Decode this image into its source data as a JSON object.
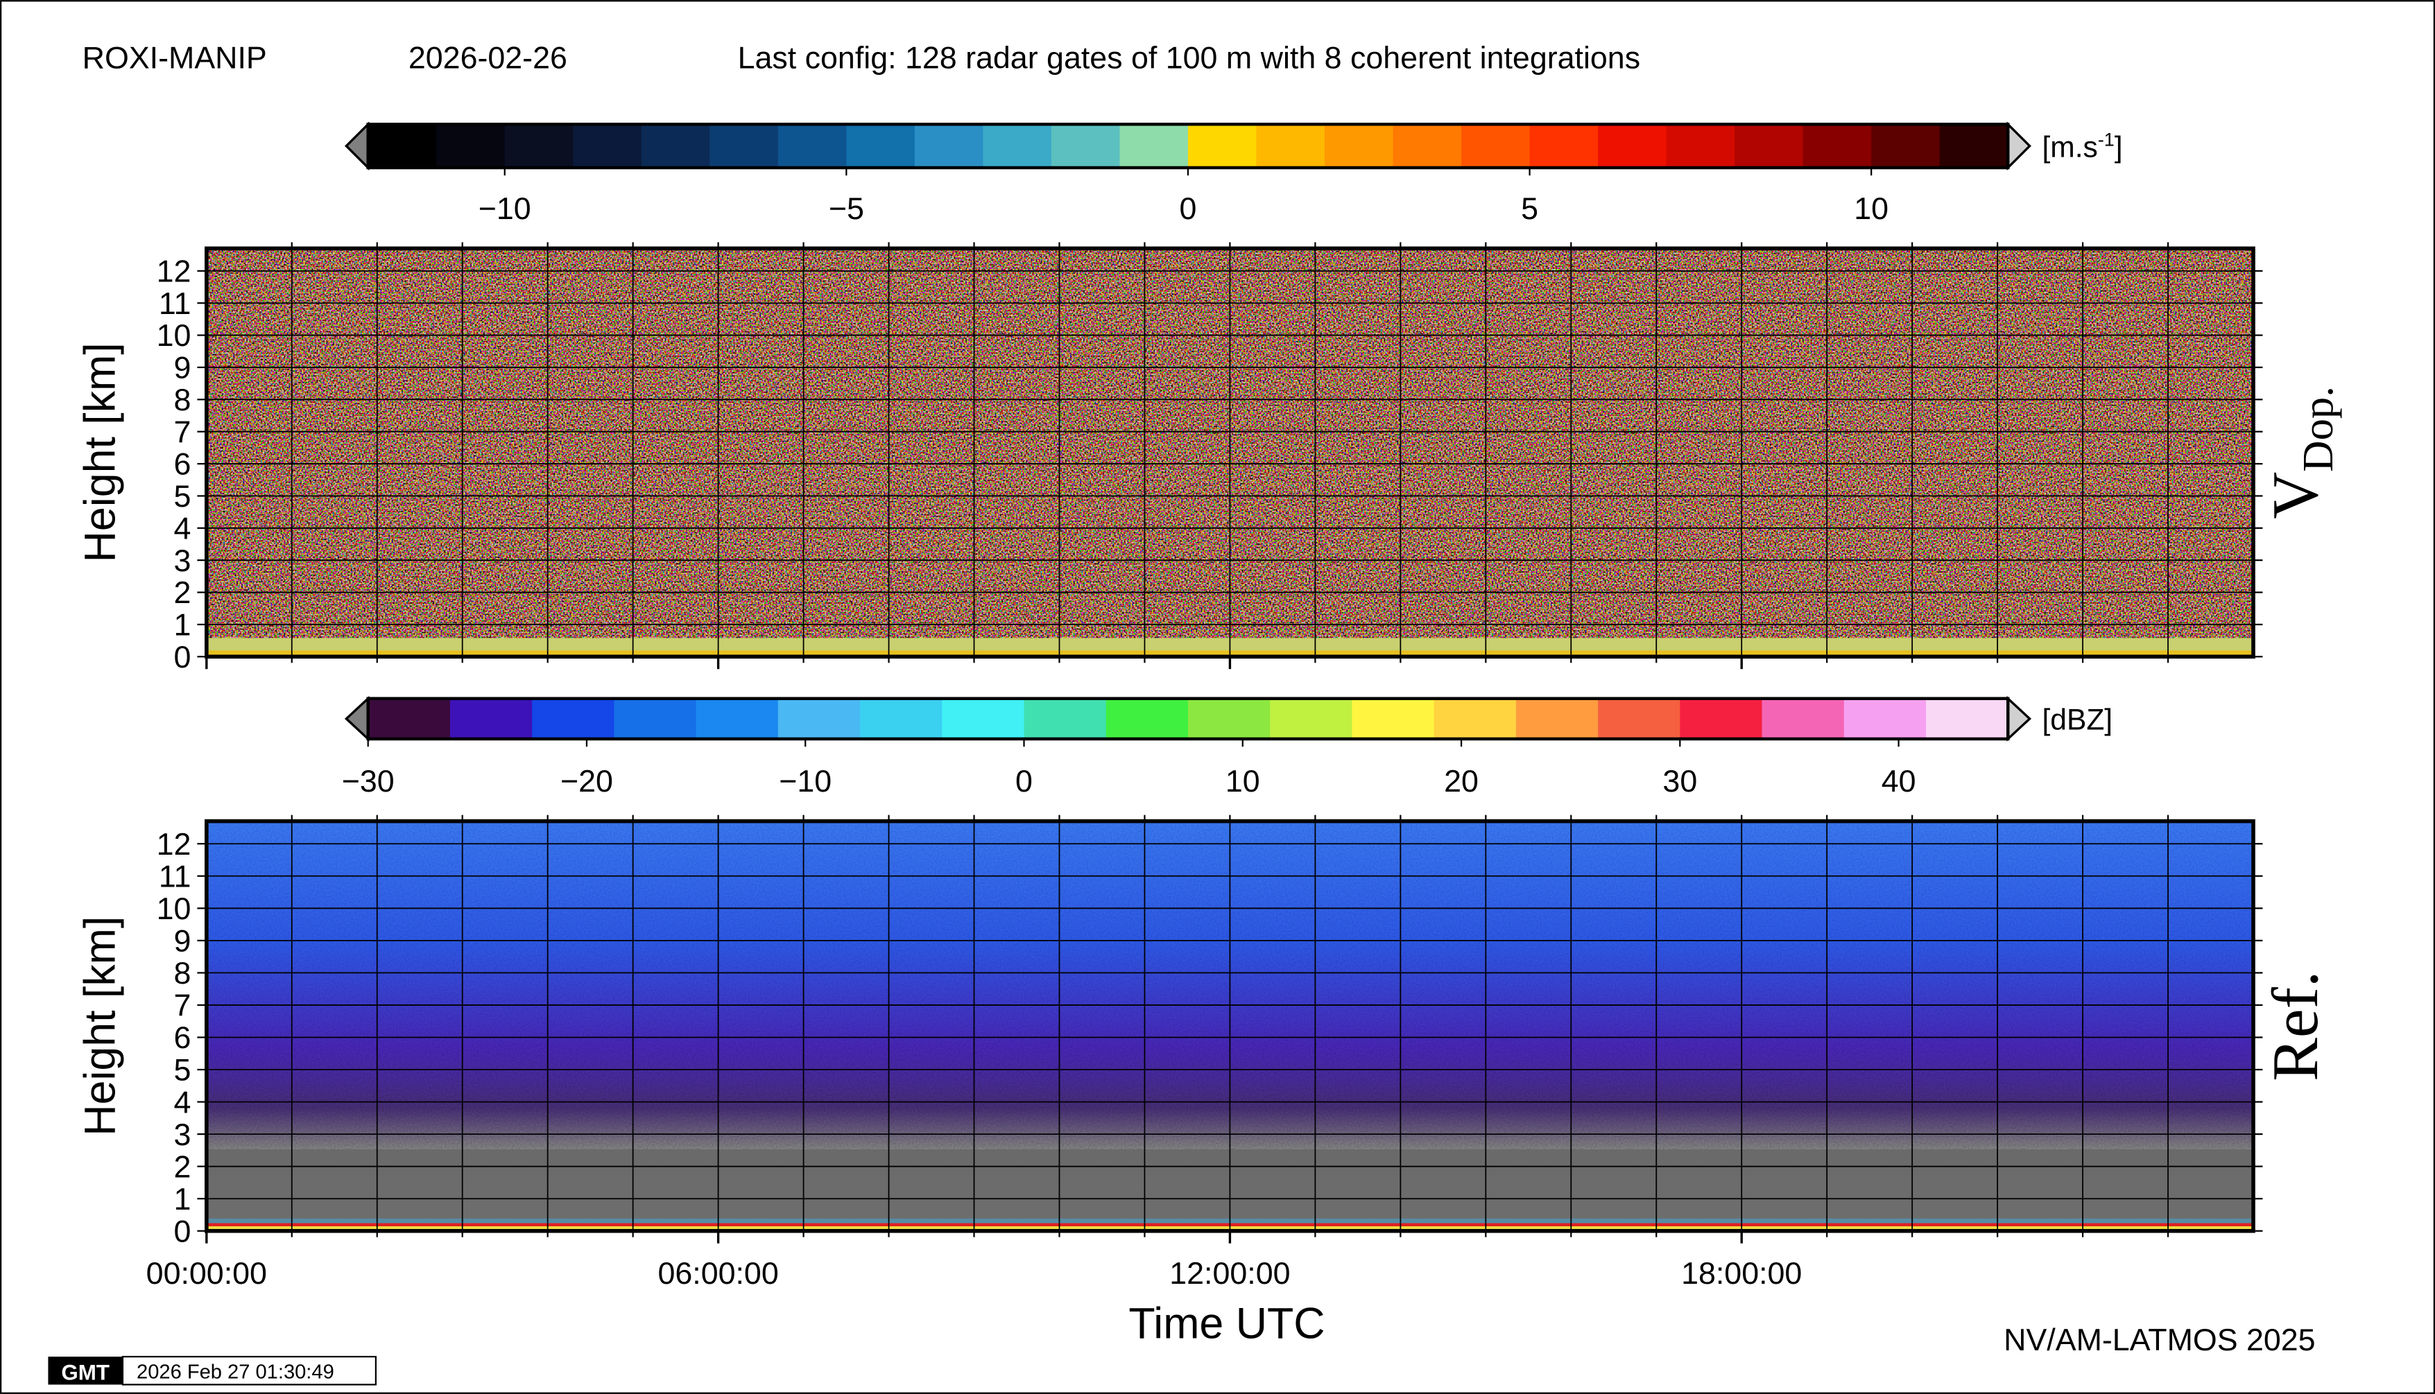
{
  "header": {
    "station": "ROXI-MANIP",
    "date": "2026-02-26",
    "config": "Last config: 128 radar gates of 100 m with 8 coherent integrations"
  },
  "xlabel": "Time UTC",
  "footer": {
    "credit": "NV/AM-LATMOS 2025",
    "gmt": "GMT",
    "timestamp": "2026 Feb 27 01:30:49"
  },
  "chart_data": [
    {
      "type": "heatmap",
      "side_label": {
        "main": "V",
        "sub": "Dop."
      },
      "ylabel": "Height [km]",
      "xlim": [
        0,
        24
      ],
      "xticks": [
        {
          "value": 0,
          "label": "00:00:00"
        },
        {
          "value": 6,
          "label": "06:00:00"
        },
        {
          "value": 12,
          "label": "12:00:00"
        },
        {
          "value": 18,
          "label": "18:00:00"
        }
      ],
      "xgrid": [
        1,
        2,
        3,
        4,
        5,
        6,
        7,
        8,
        9,
        10,
        11,
        12,
        13,
        14,
        15,
        16,
        17,
        18,
        19,
        20,
        21,
        22,
        23
      ],
      "ylim": [
        0,
        12.7
      ],
      "yticks": [
        0,
        1,
        2,
        3,
        4,
        5,
        6,
        7,
        8,
        9,
        10,
        11,
        12
      ],
      "grid": true,
      "colorbar": {
        "lim": [
          -12,
          12
        ],
        "ticks": [
          {
            "value": -10,
            "label": "−10"
          },
          {
            "value": -5,
            "label": "−5"
          },
          0,
          5,
          10
        ],
        "unit": {
          "base": "[m.s",
          "sup": "-1",
          "end": "]"
        },
        "colors": [
          "#000000",
          "#05060f",
          "#0a0f22",
          "#0b1a3a",
          "#0b2a55",
          "#0c3d72",
          "#0d5590",
          "#1270ab",
          "#2a8fc4",
          "#3aaac8",
          "#5cc0c0",
          "#8edcaa",
          "#ffd700",
          "#ffb800",
          "#ff9900",
          "#ff7a00",
          "#ff5500",
          "#ff3300",
          "#ee1100",
          "#d40a00",
          "#b00500",
          "#880000",
          "#5c0000",
          "#2a0000"
        ]
      }
    },
    {
      "type": "heatmap",
      "side_label": {
        "main": "Ref.",
        "sub": ""
      },
      "ylabel": "Height [km]",
      "xlim": [
        0,
        24
      ],
      "xticks": [
        {
          "value": 0,
          "label": "00:00:00"
        },
        {
          "value": 6,
          "label": "06:00:00"
        },
        {
          "value": 12,
          "label": "12:00:00"
        },
        {
          "value": 18,
          "label": "18:00:00"
        }
      ],
      "xgrid": [
        1,
        2,
        3,
        4,
        5,
        6,
        7,
        8,
        9,
        10,
        11,
        12,
        13,
        14,
        15,
        16,
        17,
        18,
        19,
        20,
        21,
        22,
        23
      ],
      "ylim": [
        0,
        12.7
      ],
      "yticks": [
        0,
        1,
        2,
        3,
        4,
        5,
        6,
        7,
        8,
        9,
        10,
        11,
        12
      ],
      "grid": true,
      "colorbar": {
        "lim": [
          -30,
          45
        ],
        "ticks": [
          {
            "value": -30,
            "label": "−30"
          },
          {
            "value": -20,
            "label": "−20"
          },
          {
            "value": -10,
            "label": "−10"
          },
          0,
          10,
          20,
          30,
          40
        ],
        "unit": {
          "base": "[dBZ]",
          "sup": "",
          "end": ""
        },
        "colors": [
          "#3a0a3c",
          "#3d12b8",
          "#1546e8",
          "#1670e8",
          "#1a88f0",
          "#4ab8f2",
          "#3ad0f0",
          "#40f0f5",
          "#40e0b0",
          "#40f040",
          "#8ce840",
          "#c0f040",
          "#fff540",
          "#ffd440",
          "#ff9c40",
          "#f56040",
          "#f52040",
          "#f565b5",
          "#f5a0f0",
          "#f8d8f5"
        ]
      }
    }
  ]
}
